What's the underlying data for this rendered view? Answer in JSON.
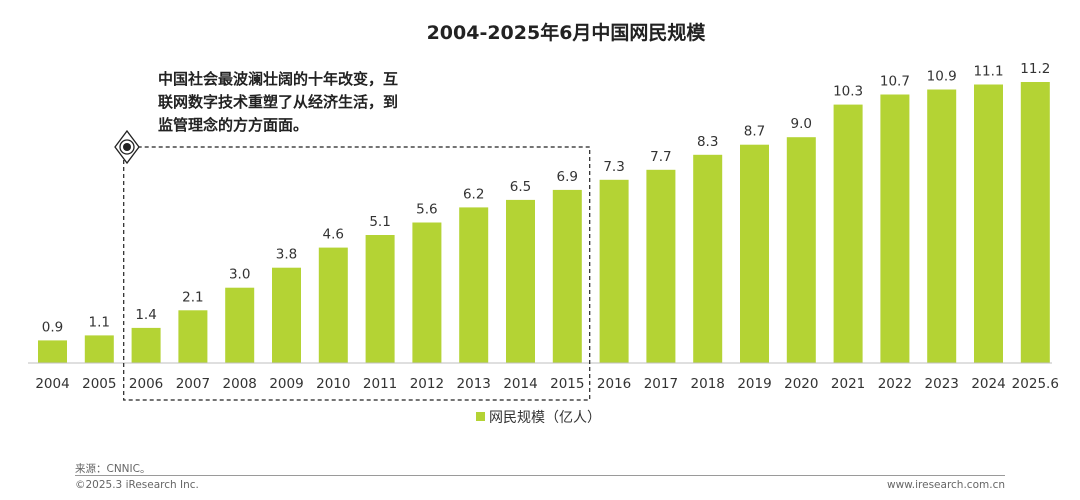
{
  "chart_data": {
    "type": "bar",
    "title": "2004-2025年6月中国网民规模",
    "categories": [
      "2004",
      "2005",
      "2006",
      "2007",
      "2008",
      "2009",
      "2010",
      "2011",
      "2012",
      "2013",
      "2014",
      "2015",
      "2016",
      "2017",
      "2018",
      "2019",
      "2020",
      "2021",
      "2022",
      "2023",
      "2024",
      "2025.6"
    ],
    "series": [
      {
        "name": "网民规模（亿人）",
        "values": [
          0.9,
          1.1,
          1.4,
          2.1,
          3.0,
          3.8,
          4.6,
          5.1,
          5.6,
          6.2,
          6.5,
          6.9,
          7.3,
          7.7,
          8.3,
          8.7,
          9.0,
          10.3,
          10.7,
          10.9,
          11.1,
          11.2
        ],
        "labels": [
          "0.9",
          "1.1",
          "1.4",
          "2.1",
          "3.0",
          "3.8",
          "4.6",
          "5.1",
          "5.6",
          "6.2",
          "6.5",
          "6.9",
          "7.3",
          "7.7",
          "8.3",
          "8.7",
          "9.0",
          "10.3",
          "10.7",
          "10.9",
          "11.1",
          "11.2"
        ],
        "color": "#b4d334"
      }
    ],
    "ylim": [
      0,
      11.2
    ],
    "xlabel": "",
    "ylabel": "",
    "grid": false,
    "legend_position": "bottom-center",
    "annotation": {
      "lines": [
        "中国社会最波澜壮阔的十年改变，互",
        "联网数字技术重塑了从经济生活，到",
        "监管理念的方方面面。"
      ],
      "range": [
        "2006",
        "2015"
      ]
    }
  },
  "footer": {
    "source": "来源：CNNIC。",
    "copyright": "©2025.3 iResearch Inc.",
    "website": "www.iresearch.com.cn"
  }
}
